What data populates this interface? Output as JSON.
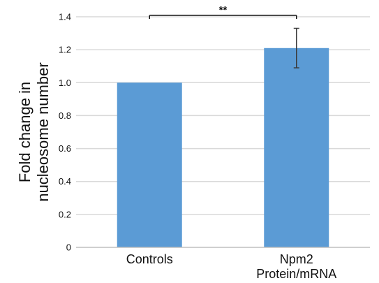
{
  "chart_data": {
    "type": "bar",
    "categories": [
      [
        "Controls"
      ],
      [
        "Npm2",
        "Protein/mRNA"
      ]
    ],
    "values": [
      1.0,
      1.21
    ],
    "error": [
      null,
      0.12
    ],
    "ylabel": [
      "Fold change in",
      "nucleosome number"
    ],
    "ylim": [
      0,
      1.4
    ],
    "yticks": [
      "0",
      "0.2",
      "0.4",
      "0.6",
      "0.8",
      "1.0",
      "1.2",
      "1.4"
    ],
    "grid": true,
    "bar_color": "#5b9bd5",
    "significance": {
      "label": "**",
      "between": [
        0,
        1
      ]
    }
  }
}
